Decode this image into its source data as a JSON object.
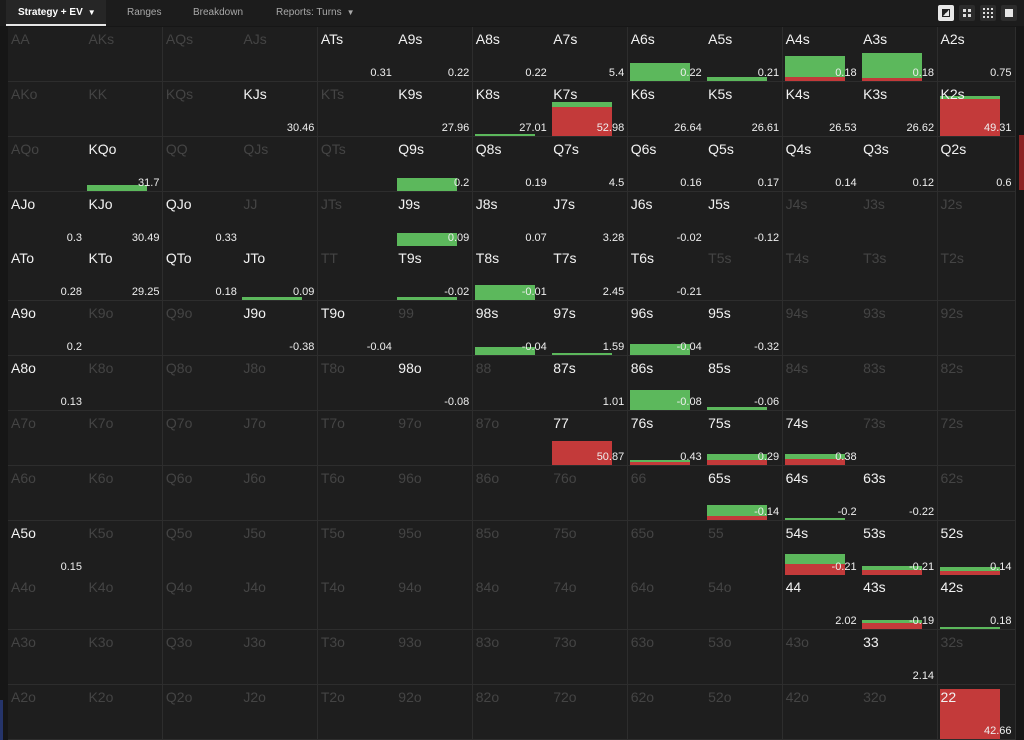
{
  "tabs": [
    {
      "label": "Strategy + EV",
      "active": true,
      "dropdown": true
    },
    {
      "label": "Ranges",
      "active": false,
      "dropdown": false
    },
    {
      "label": "Breakdown",
      "active": false,
      "dropdown": false
    },
    {
      "label": "Reports: Turns",
      "active": false,
      "dropdown": true
    }
  ],
  "view_buttons": [
    {
      "icon": "contrast-view-icon"
    },
    {
      "icon": "compact-grid-icon"
    },
    {
      "icon": "grid-view-icon"
    },
    {
      "icon": "single-square-view-icon"
    }
  ],
  "colors": {
    "raise": "#5cb85c",
    "fold": "#c33a3a",
    "highlight_text": "#f2f2f2",
    "dim_text": "#444444"
  },
  "matrix": [
    [
      {
        "hand": "AA",
        "hl": false,
        "ev": "",
        "g": 0,
        "r": 0
      },
      {
        "hand": "AKs",
        "hl": false,
        "ev": "",
        "g": 0,
        "r": 0
      },
      {
        "hand": "AQs",
        "hl": false,
        "ev": "",
        "g": 0,
        "r": 0
      },
      {
        "hand": "AJs",
        "hl": false,
        "ev": "",
        "g": 0,
        "r": 0
      },
      {
        "hand": "ATs",
        "hl": true,
        "ev": "0.31",
        "g": 0,
        "r": 0
      },
      {
        "hand": "A9s",
        "hl": true,
        "ev": "0.22",
        "g": 0,
        "r": 0
      },
      {
        "hand": "A8s",
        "hl": true,
        "ev": "0.22",
        "g": 0,
        "r": 0
      },
      {
        "hand": "A7s",
        "hl": true,
        "ev": "5.4",
        "g": 0,
        "r": 0
      },
      {
        "hand": "A6s",
        "hl": true,
        "ev": "0.22",
        "g": 0.35,
        "r": 0
      },
      {
        "hand": "A5s",
        "hl": true,
        "ev": "0.21",
        "g": 0.08,
        "r": 0
      },
      {
        "hand": "A4s",
        "hl": true,
        "ev": "0.18",
        "g": 0.4,
        "r": 0.08
      },
      {
        "hand": "A3s",
        "hl": true,
        "ev": "0.18",
        "g": 0.48,
        "r": 0.05
      },
      {
        "hand": "A2s",
        "hl": true,
        "ev": "0.75",
        "g": 0,
        "r": 0
      }
    ],
    [
      {
        "hand": "AKo",
        "hl": false,
        "ev": "",
        "g": 0,
        "r": 0
      },
      {
        "hand": "KK",
        "hl": false,
        "ev": "",
        "g": 0,
        "r": 0
      },
      {
        "hand": "KQs",
        "hl": false,
        "ev": "",
        "g": 0,
        "r": 0
      },
      {
        "hand": "KJs",
        "hl": true,
        "ev": "30.46",
        "g": 0,
        "r": 0
      },
      {
        "hand": "KTs",
        "hl": false,
        "ev": "",
        "g": 0,
        "r": 0
      },
      {
        "hand": "K9s",
        "hl": true,
        "ev": "27.96",
        "g": 0,
        "r": 0
      },
      {
        "hand": "K8s",
        "hl": true,
        "ev": "27.01",
        "g": 0.02,
        "r": 0
      },
      {
        "hand": "K7s",
        "hl": true,
        "ev": "52.98",
        "g": 0.1,
        "r": 0.55
      },
      {
        "hand": "K6s",
        "hl": true,
        "ev": "26.64",
        "g": 0,
        "r": 0
      },
      {
        "hand": "K5s",
        "hl": true,
        "ev": "26.61",
        "g": 0,
        "r": 0
      },
      {
        "hand": "K4s",
        "hl": true,
        "ev": "26.53",
        "g": 0,
        "r": 0
      },
      {
        "hand": "K3s",
        "hl": true,
        "ev": "26.62",
        "g": 0,
        "r": 0
      },
      {
        "hand": "K2s",
        "hl": true,
        "ev": "49.31",
        "g": 0.05,
        "r": 0.7
      }
    ],
    [
      {
        "hand": "AQo",
        "hl": false,
        "ev": "",
        "g": 0,
        "r": 0
      },
      {
        "hand": "KQo",
        "hl": true,
        "ev": "31.7",
        "g": 0.12,
        "r": 0
      },
      {
        "hand": "QQ",
        "hl": false,
        "ev": "",
        "g": 0,
        "r": 0
      },
      {
        "hand": "QJs",
        "hl": false,
        "ev": "",
        "g": 0,
        "r": 0
      },
      {
        "hand": "QTs",
        "hl": false,
        "ev": "",
        "g": 0,
        "r": 0
      },
      {
        "hand": "Q9s",
        "hl": true,
        "ev": "0.2",
        "g": 0.25,
        "r": 0
      },
      {
        "hand": "Q8s",
        "hl": true,
        "ev": "0.19",
        "g": 0,
        "r": 0
      },
      {
        "hand": "Q7s",
        "hl": true,
        "ev": "4.5",
        "g": 0,
        "r": 0
      },
      {
        "hand": "Q6s",
        "hl": true,
        "ev": "0.16",
        "g": 0,
        "r": 0
      },
      {
        "hand": "Q5s",
        "hl": true,
        "ev": "0.17",
        "g": 0,
        "r": 0
      },
      {
        "hand": "Q4s",
        "hl": true,
        "ev": "0.14",
        "g": 0,
        "r": 0
      },
      {
        "hand": "Q3s",
        "hl": true,
        "ev": "0.12",
        "g": 0,
        "r": 0
      },
      {
        "hand": "Q2s",
        "hl": true,
        "ev": "0.6",
        "g": 0,
        "r": 0
      }
    ],
    [
      {
        "hand": "AJo",
        "hl": true,
        "ev": "0.3",
        "g": 0,
        "r": 0
      },
      {
        "hand": "KJo",
        "hl": true,
        "ev": "30.49",
        "g": 0,
        "r": 0
      },
      {
        "hand": "QJo",
        "hl": true,
        "ev": "0.33",
        "g": 0,
        "r": 0
      },
      {
        "hand": "JJ",
        "hl": false,
        "ev": "",
        "g": 0,
        "r": 0
      },
      {
        "hand": "JTs",
        "hl": false,
        "ev": "",
        "g": 0,
        "r": 0
      },
      {
        "hand": "J9s",
        "hl": true,
        "ev": "0.09",
        "g": 0.25,
        "r": 0
      },
      {
        "hand": "J8s",
        "hl": true,
        "ev": "0.07",
        "g": 0,
        "r": 0
      },
      {
        "hand": "J7s",
        "hl": true,
        "ev": "3.28",
        "g": 0,
        "r": 0
      },
      {
        "hand": "J6s",
        "hl": true,
        "ev": "-0.02",
        "g": 0,
        "r": 0
      },
      {
        "hand": "J5s",
        "hl": true,
        "ev": "-0.12",
        "g": 0,
        "r": 0
      },
      {
        "hand": "J4s",
        "hl": false,
        "ev": "",
        "g": 0,
        "r": 0
      },
      {
        "hand": "J3s",
        "hl": false,
        "ev": "",
        "g": 0,
        "r": 0
      },
      {
        "hand": "J2s",
        "hl": false,
        "ev": "",
        "g": 0,
        "r": 0
      }
    ],
    [
      {
        "hand": "ATo",
        "hl": true,
        "ev": "0.28",
        "g": 0,
        "r": 0
      },
      {
        "hand": "KTo",
        "hl": true,
        "ev": "29.25",
        "g": 0,
        "r": 0
      },
      {
        "hand": "QTo",
        "hl": true,
        "ev": "0.18",
        "g": 0,
        "r": 0
      },
      {
        "hand": "JTo",
        "hl": true,
        "ev": "0.09",
        "g": 0.05,
        "r": 0
      },
      {
        "hand": "TT",
        "hl": false,
        "ev": "",
        "g": 0,
        "r": 0
      },
      {
        "hand": "T9s",
        "hl": true,
        "ev": "-0.02",
        "g": 0.06,
        "r": 0
      },
      {
        "hand": "T8s",
        "hl": true,
        "ev": "-0.01",
        "g": 0.28,
        "r": 0
      },
      {
        "hand": "T7s",
        "hl": true,
        "ev": "2.45",
        "g": 0,
        "r": 0
      },
      {
        "hand": "T6s",
        "hl": true,
        "ev": "-0.21",
        "g": 0,
        "r": 0
      },
      {
        "hand": "T5s",
        "hl": false,
        "ev": "",
        "g": 0,
        "r": 0
      },
      {
        "hand": "T4s",
        "hl": false,
        "ev": "",
        "g": 0,
        "r": 0
      },
      {
        "hand": "T3s",
        "hl": false,
        "ev": "",
        "g": 0,
        "r": 0
      },
      {
        "hand": "T2s",
        "hl": false,
        "ev": "",
        "g": 0,
        "r": 0
      }
    ],
    [
      {
        "hand": "A9o",
        "hl": true,
        "ev": "0.2",
        "g": 0,
        "r": 0
      },
      {
        "hand": "K9o",
        "hl": false,
        "ev": "",
        "g": 0,
        "r": 0
      },
      {
        "hand": "Q9o",
        "hl": false,
        "ev": "",
        "g": 0,
        "r": 0
      },
      {
        "hand": "J9o",
        "hl": true,
        "ev": "-0.38",
        "g": 0,
        "r": 0
      },
      {
        "hand": "T9o",
        "hl": true,
        "ev": "-0.04",
        "g": 0,
        "r": 0
      },
      {
        "hand": "99",
        "hl": false,
        "ev": "",
        "g": 0,
        "r": 0
      },
      {
        "hand": "98s",
        "hl": true,
        "ev": "-0.04",
        "g": 0.15,
        "r": 0
      },
      {
        "hand": "97s",
        "hl": true,
        "ev": "1.59",
        "g": 0.02,
        "r": 0
      },
      {
        "hand": "96s",
        "hl": true,
        "ev": "-0.04",
        "g": 0.2,
        "r": 0
      },
      {
        "hand": "95s",
        "hl": true,
        "ev": "-0.32",
        "g": 0,
        "r": 0
      },
      {
        "hand": "94s",
        "hl": false,
        "ev": "",
        "g": 0,
        "r": 0
      },
      {
        "hand": "93s",
        "hl": false,
        "ev": "",
        "g": 0,
        "r": 0
      },
      {
        "hand": "92s",
        "hl": false,
        "ev": "",
        "g": 0,
        "r": 0
      }
    ],
    [
      {
        "hand": "A8o",
        "hl": true,
        "ev": "0.13",
        "g": 0,
        "r": 0
      },
      {
        "hand": "K8o",
        "hl": false,
        "ev": "",
        "g": 0,
        "r": 0
      },
      {
        "hand": "Q8o",
        "hl": false,
        "ev": "",
        "g": 0,
        "r": 0
      },
      {
        "hand": "J8o",
        "hl": false,
        "ev": "",
        "g": 0,
        "r": 0
      },
      {
        "hand": "T8o",
        "hl": false,
        "ev": "",
        "g": 0,
        "r": 0
      },
      {
        "hand": "98o",
        "hl": true,
        "ev": "-0.08",
        "g": 0,
        "r": 0
      },
      {
        "hand": "88",
        "hl": false,
        "ev": "",
        "g": 0,
        "r": 0
      },
      {
        "hand": "87s",
        "hl": true,
        "ev": "1.01",
        "g": 0,
        "r": 0
      },
      {
        "hand": "86s",
        "hl": true,
        "ev": "-0.08",
        "g": 0.38,
        "r": 0
      },
      {
        "hand": "85s",
        "hl": true,
        "ev": "-0.06",
        "g": 0.05,
        "r": 0
      },
      {
        "hand": "84s",
        "hl": false,
        "ev": "",
        "g": 0,
        "r": 0
      },
      {
        "hand": "83s",
        "hl": false,
        "ev": "",
        "g": 0,
        "r": 0
      },
      {
        "hand": "82s",
        "hl": false,
        "ev": "",
        "g": 0,
        "r": 0
      }
    ],
    [
      {
        "hand": "A7o",
        "hl": false,
        "ev": "",
        "g": 0,
        "r": 0
      },
      {
        "hand": "K7o",
        "hl": false,
        "ev": "",
        "g": 0,
        "r": 0
      },
      {
        "hand": "Q7o",
        "hl": false,
        "ev": "",
        "g": 0,
        "r": 0
      },
      {
        "hand": "J7o",
        "hl": false,
        "ev": "",
        "g": 0,
        "r": 0
      },
      {
        "hand": "T7o",
        "hl": false,
        "ev": "",
        "g": 0,
        "r": 0
      },
      {
        "hand": "97o",
        "hl": false,
        "ev": "",
        "g": 0,
        "r": 0
      },
      {
        "hand": "87o",
        "hl": false,
        "ev": "",
        "g": 0,
        "r": 0
      },
      {
        "hand": "77",
        "hl": true,
        "ev": "50.87",
        "g": 0,
        "r": 0.45
      },
      {
        "hand": "76s",
        "hl": true,
        "ev": "0.43",
        "g": 0.04,
        "r": 0.06
      },
      {
        "hand": "75s",
        "hl": true,
        "ev": "0.29",
        "g": 0.12,
        "r": 0.1
      },
      {
        "hand": "74s",
        "hl": true,
        "ev": "0.38",
        "g": 0.1,
        "r": 0.12
      },
      {
        "hand": "73s",
        "hl": false,
        "ev": "",
        "g": 0,
        "r": 0
      },
      {
        "hand": "72s",
        "hl": false,
        "ev": "",
        "g": 0,
        "r": 0
      }
    ],
    [
      {
        "hand": "A6o",
        "hl": false,
        "ev": "",
        "g": 0,
        "r": 0
      },
      {
        "hand": "K6o",
        "hl": false,
        "ev": "",
        "g": 0,
        "r": 0
      },
      {
        "hand": "Q6o",
        "hl": false,
        "ev": "",
        "g": 0,
        "r": 0
      },
      {
        "hand": "J6o",
        "hl": false,
        "ev": "",
        "g": 0,
        "r": 0
      },
      {
        "hand": "T6o",
        "hl": false,
        "ev": "",
        "g": 0,
        "r": 0
      },
      {
        "hand": "96o",
        "hl": false,
        "ev": "",
        "g": 0,
        "r": 0
      },
      {
        "hand": "86o",
        "hl": false,
        "ev": "",
        "g": 0,
        "r": 0
      },
      {
        "hand": "76o",
        "hl": false,
        "ev": "",
        "g": 0,
        "r": 0
      },
      {
        "hand": "66",
        "hl": false,
        "ev": "",
        "g": 0,
        "r": 0
      },
      {
        "hand": "65s",
        "hl": true,
        "ev": "-0.14",
        "g": 0.2,
        "r": 0.08
      },
      {
        "hand": "64s",
        "hl": true,
        "ev": "-0.2",
        "g": 0.03,
        "r": 0
      },
      {
        "hand": "63s",
        "hl": true,
        "ev": "-0.22",
        "g": 0,
        "r": 0
      },
      {
        "hand": "62s",
        "hl": false,
        "ev": "",
        "g": 0,
        "r": 0
      }
    ],
    [
      {
        "hand": "A5o",
        "hl": true,
        "ev": "0.15",
        "g": 0,
        "r": 0
      },
      {
        "hand": "K5o",
        "hl": false,
        "ev": "",
        "g": 0,
        "r": 0
      },
      {
        "hand": "Q5o",
        "hl": false,
        "ev": "",
        "g": 0,
        "r": 0
      },
      {
        "hand": "J5o",
        "hl": false,
        "ev": "",
        "g": 0,
        "r": 0
      },
      {
        "hand": "T5o",
        "hl": false,
        "ev": "",
        "g": 0,
        "r": 0
      },
      {
        "hand": "95o",
        "hl": false,
        "ev": "",
        "g": 0,
        "r": 0
      },
      {
        "hand": "85o",
        "hl": false,
        "ev": "",
        "g": 0,
        "r": 0
      },
      {
        "hand": "75o",
        "hl": false,
        "ev": "",
        "g": 0,
        "r": 0
      },
      {
        "hand": "65o",
        "hl": false,
        "ev": "",
        "g": 0,
        "r": 0
      },
      {
        "hand": "55",
        "hl": false,
        "ev": "",
        "g": 0,
        "r": 0
      },
      {
        "hand": "54s",
        "hl": true,
        "ev": "-0.21",
        "g": 0.18,
        "r": 0.2
      },
      {
        "hand": "53s",
        "hl": true,
        "ev": "-0.21",
        "g": 0.08,
        "r": 0.1
      },
      {
        "hand": "52s",
        "hl": true,
        "ev": "0.14",
        "g": 0.08,
        "r": 0.08
      }
    ],
    [
      {
        "hand": "A4o",
        "hl": false,
        "ev": "",
        "g": 0,
        "r": 0
      },
      {
        "hand": "K4o",
        "hl": false,
        "ev": "",
        "g": 0,
        "r": 0
      },
      {
        "hand": "Q4o",
        "hl": false,
        "ev": "",
        "g": 0,
        "r": 0
      },
      {
        "hand": "J4o",
        "hl": false,
        "ev": "",
        "g": 0,
        "r": 0
      },
      {
        "hand": "T4o",
        "hl": false,
        "ev": "",
        "g": 0,
        "r": 0
      },
      {
        "hand": "94o",
        "hl": false,
        "ev": "",
        "g": 0,
        "r": 0
      },
      {
        "hand": "84o",
        "hl": false,
        "ev": "",
        "g": 0,
        "r": 0
      },
      {
        "hand": "74o",
        "hl": false,
        "ev": "",
        "g": 0,
        "r": 0
      },
      {
        "hand": "64o",
        "hl": false,
        "ev": "",
        "g": 0,
        "r": 0
      },
      {
        "hand": "54o",
        "hl": false,
        "ev": "",
        "g": 0,
        "r": 0
      },
      {
        "hand": "44",
        "hl": true,
        "ev": "2.02",
        "g": 0,
        "r": 0
      },
      {
        "hand": "43s",
        "hl": true,
        "ev": "-0.19",
        "g": 0.05,
        "r": 0.12
      },
      {
        "hand": "42s",
        "hl": true,
        "ev": "0.18",
        "g": 0.02,
        "r": 0
      }
    ],
    [
      {
        "hand": "A3o",
        "hl": false,
        "ev": "",
        "g": 0,
        "r": 0
      },
      {
        "hand": "K3o",
        "hl": false,
        "ev": "",
        "g": 0,
        "r": 0
      },
      {
        "hand": "Q3o",
        "hl": false,
        "ev": "",
        "g": 0,
        "r": 0
      },
      {
        "hand": "J3o",
        "hl": false,
        "ev": "",
        "g": 0,
        "r": 0
      },
      {
        "hand": "T3o",
        "hl": false,
        "ev": "",
        "g": 0,
        "r": 0
      },
      {
        "hand": "93o",
        "hl": false,
        "ev": "",
        "g": 0,
        "r": 0
      },
      {
        "hand": "83o",
        "hl": false,
        "ev": "",
        "g": 0,
        "r": 0
      },
      {
        "hand": "73o",
        "hl": false,
        "ev": "",
        "g": 0,
        "r": 0
      },
      {
        "hand": "63o",
        "hl": false,
        "ev": "",
        "g": 0,
        "r": 0
      },
      {
        "hand": "53o",
        "hl": false,
        "ev": "",
        "g": 0,
        "r": 0
      },
      {
        "hand": "43o",
        "hl": false,
        "ev": "",
        "g": 0,
        "r": 0
      },
      {
        "hand": "33",
        "hl": true,
        "ev": "2.14",
        "g": 0,
        "r": 0
      },
      {
        "hand": "32s",
        "hl": false,
        "ev": "",
        "g": 0,
        "r": 0
      }
    ],
    [
      {
        "hand": "A2o",
        "hl": false,
        "ev": "",
        "g": 0,
        "r": 0
      },
      {
        "hand": "K2o",
        "hl": false,
        "ev": "",
        "g": 0,
        "r": 0
      },
      {
        "hand": "Q2o",
        "hl": false,
        "ev": "",
        "g": 0,
        "r": 0
      },
      {
        "hand": "J2o",
        "hl": false,
        "ev": "",
        "g": 0,
        "r": 0
      },
      {
        "hand": "T2o",
        "hl": false,
        "ev": "",
        "g": 0,
        "r": 0
      },
      {
        "hand": "92o",
        "hl": false,
        "ev": "",
        "g": 0,
        "r": 0
      },
      {
        "hand": "82o",
        "hl": false,
        "ev": "",
        "g": 0,
        "r": 0
      },
      {
        "hand": "72o",
        "hl": false,
        "ev": "",
        "g": 0,
        "r": 0
      },
      {
        "hand": "62o",
        "hl": false,
        "ev": "",
        "g": 0,
        "r": 0
      },
      {
        "hand": "52o",
        "hl": false,
        "ev": "",
        "g": 0,
        "r": 0
      },
      {
        "hand": "42o",
        "hl": false,
        "ev": "",
        "g": 0,
        "r": 0
      },
      {
        "hand": "32o",
        "hl": false,
        "ev": "",
        "g": 0,
        "r": 0
      },
      {
        "hand": "22",
        "hl": true,
        "ev": "42.66",
        "g": 0,
        "r": 0.95
      }
    ]
  ]
}
